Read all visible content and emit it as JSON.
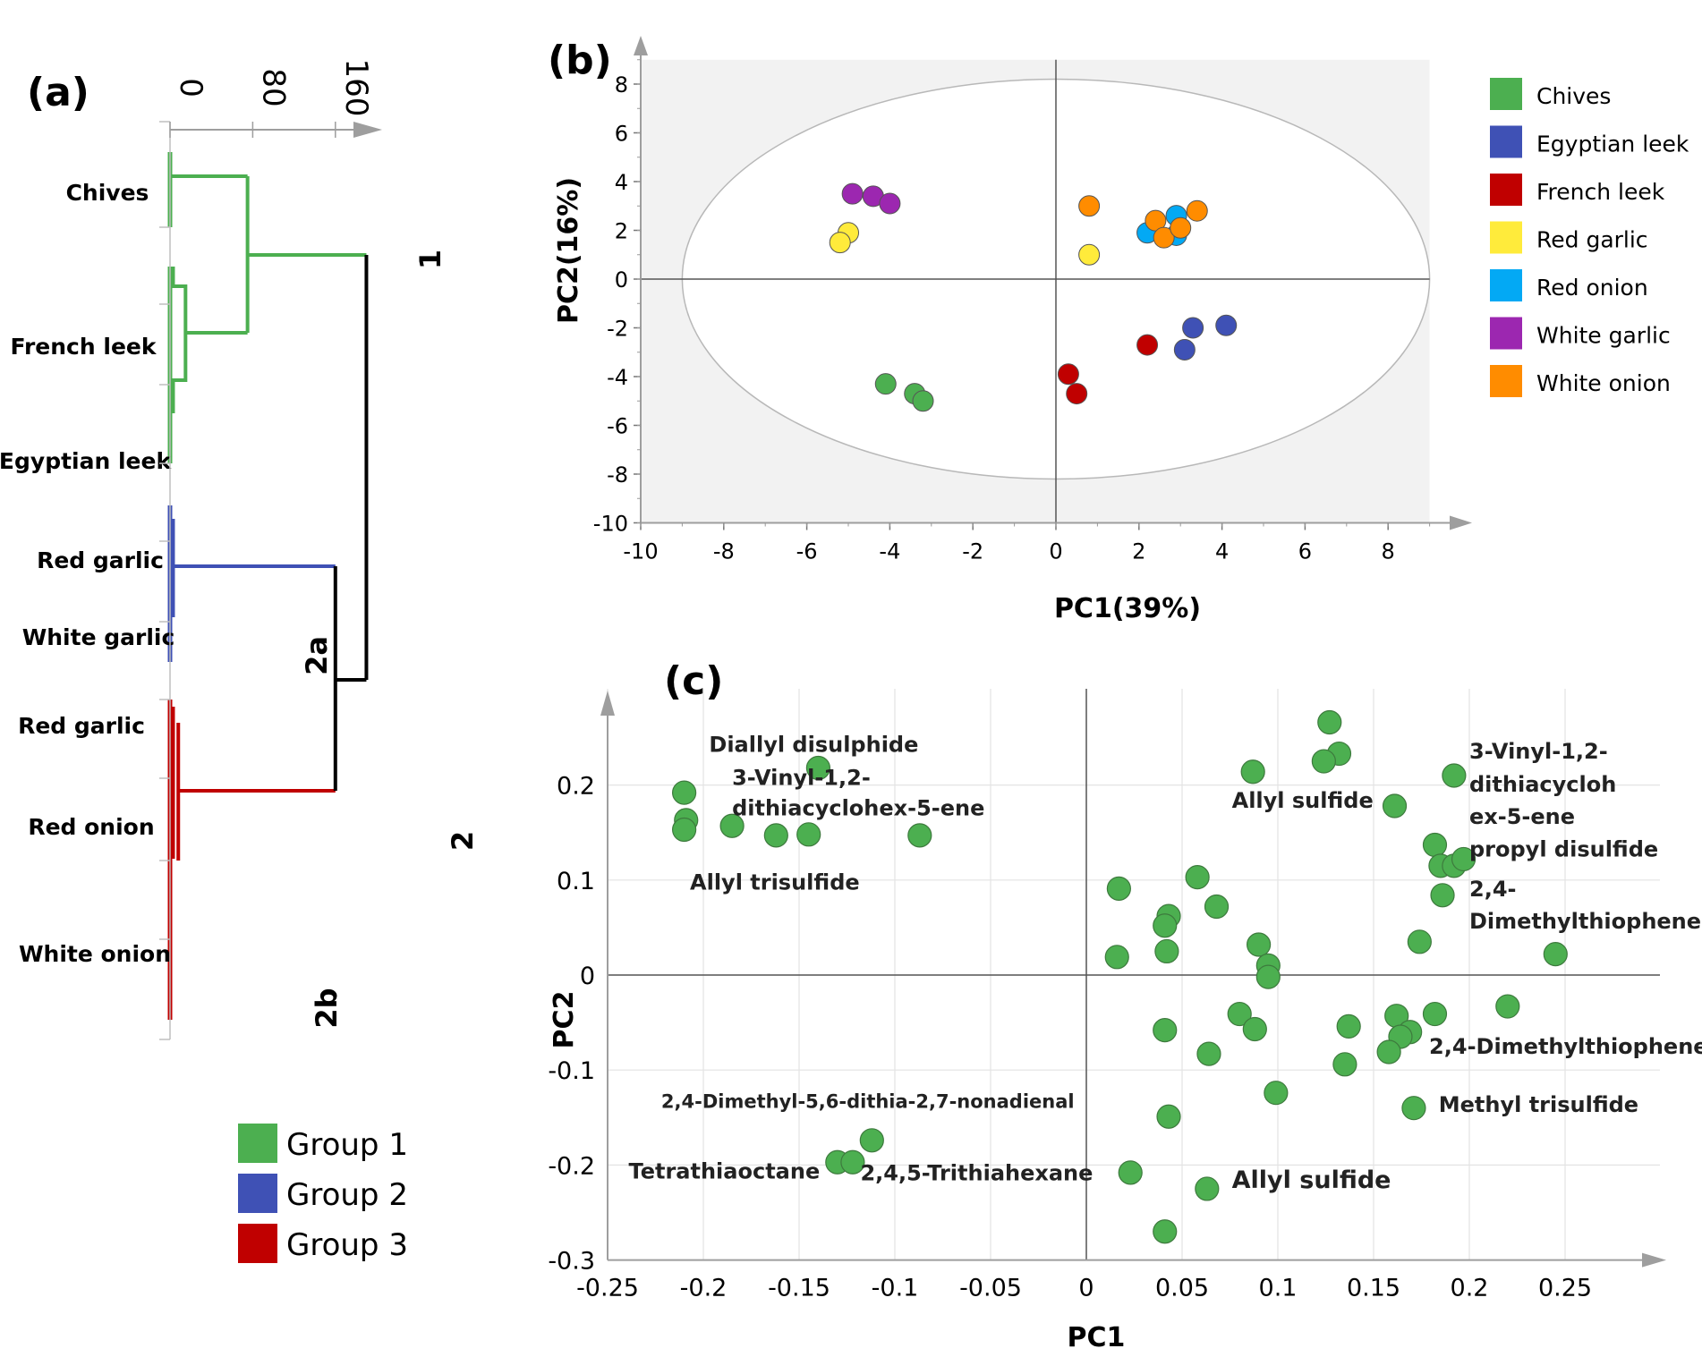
{
  "chart_data": [
    {
      "panel": "(a)",
      "type": "dendrogram",
      "axis_ticks": [
        "0",
        "80",
        "160"
      ],
      "axis_range": [
        0,
        190
      ],
      "leaf_labels": [
        "Chives",
        "French leek",
        "Egyptian leek",
        "Red garlic",
        "White garlic",
        "Red garlic",
        "Red onion",
        "White onion"
      ],
      "cluster_labels": [
        "1",
        "2",
        "2a",
        "2b"
      ],
      "legend": [
        {
          "name": "Group 1",
          "color": "#4caf50"
        },
        {
          "name": "Group 2",
          "color": "#3f51b5"
        },
        {
          "name": "Group 3",
          "color": "#c00000"
        }
      ],
      "merge_heights": {
        "group1_inner": 15,
        "group1": 75,
        "group2": 160,
        "group3_2b": 160,
        "root": 190
      }
    },
    {
      "panel": "(b)",
      "type": "scatter",
      "xlabel": "PC1(39%)",
      "ylabel": "PC2(16%)",
      "xlim": [
        -10,
        9
      ],
      "ylim": [
        -10,
        9
      ],
      "xticks": [
        "-10",
        "-8",
        "-6",
        "-4",
        "-2",
        "0",
        "2",
        "4",
        "6",
        "8"
      ],
      "yticks": [
        "8",
        "6",
        "4",
        "2",
        "0",
        "-2",
        "-4",
        "-6",
        "-8",
        "-10"
      ],
      "ellipse": {
        "cx": 0,
        "cy": 0,
        "rx": 9,
        "ry": 8.2
      },
      "series": [
        {
          "name": "Chives",
          "color": "#4caf50",
          "points": [
            [
              -4.1,
              -4.3
            ],
            [
              -3.4,
              -4.7
            ],
            [
              -3.2,
              -5.0
            ]
          ]
        },
        {
          "name": "Egyptian leek",
          "color": "#3f51b5",
          "points": [
            [
              3.3,
              -2.0
            ],
            [
              4.1,
              -1.9
            ],
            [
              3.1,
              -2.9
            ]
          ]
        },
        {
          "name": "French leek",
          "color": "#c00000",
          "points": [
            [
              2.2,
              -2.7
            ],
            [
              0.3,
              -3.9
            ],
            [
              0.5,
              -4.7
            ]
          ]
        },
        {
          "name": "Red garlic",
          "color": "#ffeb3b",
          "points": [
            [
              -5.0,
              1.9
            ],
            [
              -5.2,
              1.5
            ],
            [
              0.8,
              1.0
            ]
          ]
        },
        {
          "name": "Red onion",
          "color": "#03a9f4",
          "points": [
            [
              2.2,
              1.9
            ],
            [
              2.9,
              2.6
            ],
            [
              2.9,
              1.8
            ]
          ]
        },
        {
          "name": "White garlic",
          "color": "#9c27b0",
          "points": [
            [
              -4.9,
              3.5
            ],
            [
              -4.4,
              3.4
            ],
            [
              -4.0,
              3.1
            ]
          ]
        },
        {
          "name": "White onion",
          "color": "#ff8c00",
          "points": [
            [
              0.8,
              3.0
            ],
            [
              2.4,
              2.4
            ],
            [
              2.6,
              1.7
            ],
            [
              3.0,
              2.1
            ],
            [
              3.4,
              2.8
            ]
          ]
        }
      ]
    },
    {
      "panel": "(c)",
      "type": "scatter",
      "xlabel": "PC1",
      "ylabel": "PC2",
      "xlim": [
        -0.25,
        0.3
      ],
      "ylim": [
        -0.3,
        0.3
      ],
      "xticks": [
        "-0.25",
        "-0.2",
        "-0.15",
        "-0.1",
        "-0.05",
        "0",
        "0.05",
        "0.1",
        "0.15",
        "0.2",
        "0.25"
      ],
      "yticks": [
        "0.2",
        "0.1",
        "0",
        "-0.1",
        "-0.2",
        "-0.3"
      ],
      "point_color": "#4caf50",
      "points": [
        [
          -0.21,
          0.192
        ],
        [
          -0.209,
          0.163
        ],
        [
          -0.21,
          0.153
        ],
        [
          -0.185,
          0.157
        ],
        [
          -0.162,
          0.147
        ],
        [
          -0.145,
          0.148
        ],
        [
          -0.14,
          0.218
        ],
        [
          -0.087,
          0.147
        ],
        [
          -0.112,
          -0.174
        ],
        [
          -0.13,
          -0.197
        ],
        [
          -0.122,
          -0.197
        ],
        [
          0.127,
          0.266
        ],
        [
          0.132,
          0.233
        ],
        [
          0.124,
          0.225
        ],
        [
          0.087,
          0.214
        ],
        [
          0.161,
          0.178
        ],
        [
          0.192,
          0.21
        ],
        [
          0.182,
          0.137
        ],
        [
          0.185,
          0.115
        ],
        [
          0.192,
          0.115
        ],
        [
          0.197,
          0.122
        ],
        [
          0.186,
          0.084
        ],
        [
          0.058,
          0.103
        ],
        [
          0.017,
          0.091
        ],
        [
          0.068,
          0.072
        ],
        [
          0.043,
          0.062
        ],
        [
          0.041,
          0.052
        ],
        [
          0.042,
          0.025
        ],
        [
          0.016,
          0.019
        ],
        [
          0.09,
          0.032
        ],
        [
          0.095,
          0.01
        ],
        [
          0.095,
          -0.002
        ],
        [
          0.174,
          0.035
        ],
        [
          0.245,
          0.022
        ],
        [
          0.22,
          -0.033
        ],
        [
          0.182,
          -0.041
        ],
        [
          0.162,
          -0.043
        ],
        [
          0.137,
          -0.054
        ],
        [
          0.169,
          -0.06
        ],
        [
          0.164,
          -0.065
        ],
        [
          0.158,
          -0.081
        ],
        [
          0.135,
          -0.094
        ],
        [
          0.08,
          -0.041
        ],
        [
          0.088,
          -0.057
        ],
        [
          0.041,
          -0.058
        ],
        [
          0.064,
          -0.083
        ],
        [
          0.099,
          -0.124
        ],
        [
          0.043,
          -0.149
        ],
        [
          0.171,
          -0.14
        ],
        [
          0.023,
          -0.208
        ],
        [
          0.063,
          -0.225
        ],
        [
          0.041,
          -0.27
        ]
      ],
      "annotations": [
        {
          "text": "Diallyl disulphide",
          "x": -0.197,
          "y": 0.235
        },
        {
          "text": "3-Vinyl-1,2-",
          "x": -0.185,
          "y": 0.2
        },
        {
          "text": "dithiacyclohex-5-ene",
          "x": -0.185,
          "y": 0.168
        },
        {
          "text": "Allyl  trisulfide",
          "x": -0.207,
          "y": 0.09
        },
        {
          "text": "Allyl sulfide",
          "x": 0.076,
          "y": 0.176
        },
        {
          "text": "3-Vinyl-1,2-",
          "x": 0.2,
          "y": 0.228
        },
        {
          "text": "dithiacycloh",
          "x": 0.2,
          "y": 0.193
        },
        {
          "text": "ex-5-ene",
          "x": 0.2,
          "y": 0.159
        },
        {
          "text": "propyl disulfide",
          "x": 0.2,
          "y": 0.125
        },
        {
          "text": "2,4-",
          "x": 0.2,
          "y": 0.083
        },
        {
          "text": "Dimethylthiophene",
          "x": 0.2,
          "y": 0.049
        },
        {
          "text": "2,4-Dimethylthiophene",
          "x": 0.179,
          "y": -0.083
        },
        {
          "text": "2,4-Dimethyl-5,6-dithia-2,7-nonadienal",
          "x": -0.222,
          "y": -0.14
        },
        {
          "text": "Tetrathiaoctane",
          "x": -0.239,
          "y": -0.214
        },
        {
          "text": "2,4,5-Trithiahexane",
          "x": -0.118,
          "y": -0.216
        },
        {
          "text": "Methyl trisulfide",
          "x": 0.184,
          "y": -0.144
        },
        {
          "text": "Allyl sulfide",
          "x": 0.076,
          "y": -0.224
        }
      ]
    }
  ]
}
